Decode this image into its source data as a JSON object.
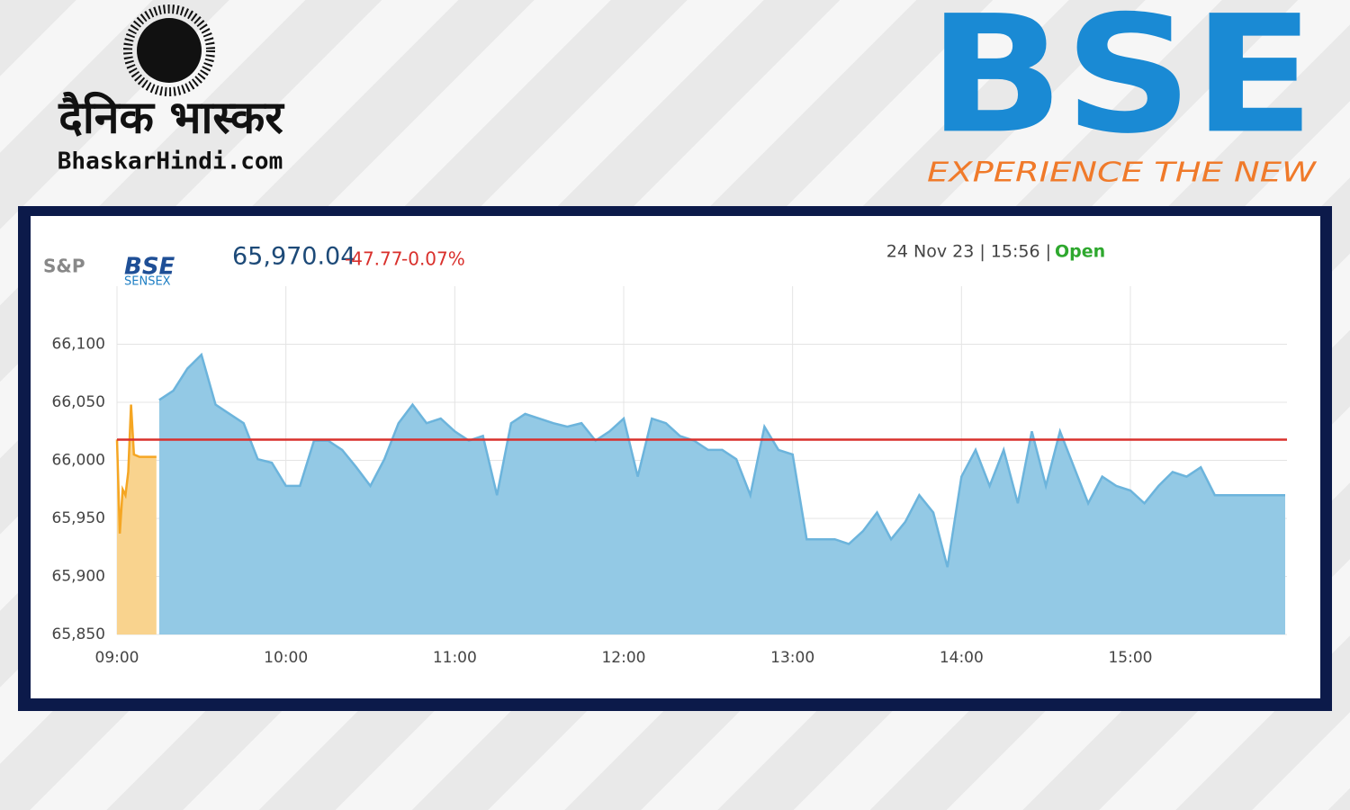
{
  "branding": {
    "publisher_hindi": "दैनिक भास्कर",
    "publisher_site": "BhaskarHindi.com",
    "exchange_logo": "BSE",
    "exchange_tagline": "EXPERIENCE THE NEW"
  },
  "chart_data": {
    "type": "area",
    "index_brand": "S&P",
    "index_logo": "BSE",
    "index_name": "SENSEX",
    "price": "65,970.04",
    "change": "-47.77",
    "change_pct": "-0.07%",
    "timestamp": "24 Nov 23 | 15:56 |",
    "status": "Open",
    "xlim": [
      "09:00",
      "15:55"
    ],
    "xticks": [
      "09:00",
      "10:00",
      "11:00",
      "12:00",
      "13:00",
      "14:00",
      "15:00"
    ],
    "ylim": [
      65850,
      66150
    ],
    "yticks": [
      {
        "value": 65850,
        "label": "65,850"
      },
      {
        "value": 65900,
        "label": "65,900"
      },
      {
        "value": 65950,
        "label": "65,950"
      },
      {
        "value": 66000,
        "label": "66,000"
      },
      {
        "value": 66050,
        "label": "66,050"
      },
      {
        "value": 66100,
        "label": "66,100"
      }
    ],
    "grid": true,
    "reference_line": 66017.81,
    "reference_color": "#d9302c",
    "series": [
      {
        "color": "#f5a623",
        "fill": "#f9d38e",
        "x": [
          "09:00",
          "09:01",
          "09:02",
          "09:03",
          "09:04",
          "09:05",
          "09:06",
          "09:08",
          "09:14"
        ],
        "values": [
          66018,
          65937,
          65975,
          65970,
          65990,
          66048,
          66005,
          66003,
          66003
        ]
      },
      {
        "color": "#6cb4dc",
        "fill": "#93c9e5",
        "x": [
          "09:15",
          "09:20",
          "09:25",
          "09:30",
          "09:35",
          "09:40",
          "09:45",
          "09:50",
          "09:55",
          "10:00",
          "10:05",
          "10:10",
          "10:15",
          "10:20",
          "10:25",
          "10:30",
          "10:35",
          "10:40",
          "10:45",
          "10:50",
          "10:55",
          "11:00",
          "11:05",
          "11:10",
          "11:15",
          "11:20",
          "11:25",
          "11:30",
          "11:35",
          "11:40",
          "11:45",
          "11:50",
          "11:55",
          "12:00",
          "12:05",
          "12:10",
          "12:15",
          "12:20",
          "12:25",
          "12:30",
          "12:35",
          "12:40",
          "12:45",
          "12:50",
          "12:55",
          "13:00",
          "13:05",
          "13:10",
          "13:15",
          "13:20",
          "13:25",
          "13:30",
          "13:35",
          "13:40",
          "13:45",
          "13:50",
          "13:55",
          "14:00",
          "14:05",
          "14:10",
          "14:15",
          "14:20",
          "14:25",
          "14:30",
          "14:35",
          "14:40",
          "14:45",
          "14:50",
          "14:55",
          "15:00",
          "15:05",
          "15:10",
          "15:15",
          "15:20",
          "15:25",
          "15:30",
          "15:55"
        ],
        "values": [
          66052,
          66060,
          66079,
          66091,
          66048,
          66040,
          66032,
          66001,
          65998,
          65978,
          65978,
          66017,
          66017,
          66009,
          65994,
          65978,
          66001,
          66032,
          66048,
          66032,
          66036,
          66025,
          66017,
          66021,
          65970,
          66032,
          66040,
          66036,
          66032,
          66029,
          66032,
          66017,
          66025,
          66036,
          65986,
          66036,
          66032,
          66021,
          66017,
          66009,
          66009,
          66001,
          65970,
          66029,
          66009,
          66005,
          65932,
          65932,
          65932,
          65928,
          65939,
          65955,
          65932,
          65947,
          65970,
          65955,
          65908,
          65986,
          66009,
          65978,
          66009,
          65963,
          66025,
          65978,
          66025,
          65994,
          65963,
          65986,
          65978,
          65974,
          65963,
          65978,
          65990,
          65986,
          65994,
          65970,
          65970
        ]
      }
    ]
  }
}
